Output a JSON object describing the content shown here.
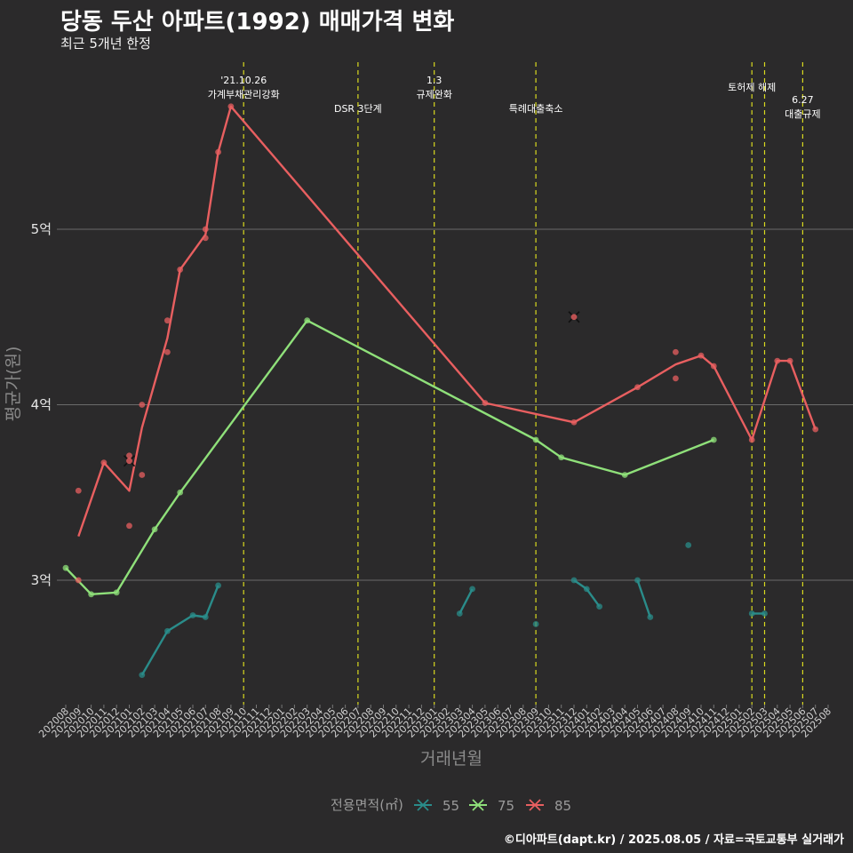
{
  "header": {
    "title": "당동 두산 아파트(1992) 매매가격 변화",
    "subtitle": "최근 5개년 한정"
  },
  "caption": "©디아파트(dapt.kr) / 2025.08.05 / 자료=국토교통부 실거래가",
  "colors": {
    "s55": "#2a8c8a",
    "s75": "#8fe07a",
    "s85": "#e85f60",
    "event": "#d9d91f",
    "grid": "#6b6b6b",
    "background": "#2b2a2b"
  },
  "chart_data": {
    "type": "line",
    "title": "당동 두산 아파트(1992) 매매가격 변화",
    "subtitle": "최근 5개년 한정",
    "xlabel": "거래년월",
    "ylabel": "평균가(원)",
    "legend_title": "전용면적(㎡)",
    "legend_position": "bottom",
    "grid": true,
    "ylim": [
      2.3,
      5.7
    ],
    "yticks": [
      {
        "value": 3,
        "label": "3억"
      },
      {
        "value": 4,
        "label": "4억"
      },
      {
        "value": 5,
        "label": "5억"
      }
    ],
    "categories": [
      "202008",
      "202009",
      "202010",
      "202011",
      "202012",
      "202101",
      "202102",
      "202103",
      "202104",
      "202105",
      "202106",
      "202107",
      "202108",
      "202109",
      "202110",
      "202111",
      "202112",
      "202201",
      "202202",
      "202203",
      "202204",
      "202205",
      "202206",
      "202207",
      "202208",
      "202209",
      "202210",
      "202211",
      "202212",
      "202301",
      "202302",
      "202303",
      "202304",
      "202305",
      "202306",
      "202307",
      "202308",
      "202309",
      "202310",
      "202311",
      "202312",
      "202401",
      "202402",
      "202403",
      "202404",
      "202405",
      "202406",
      "202407",
      "202408",
      "202409",
      "202410",
      "202411",
      "202412",
      "202501",
      "202502",
      "202503",
      "202504",
      "202505",
      "202506",
      "202507",
      "202508"
    ],
    "events": [
      {
        "month": "202110",
        "lines": [
          "'21.10.26",
          "가계부채관리강화"
        ]
      },
      {
        "month": "202207",
        "lines": [
          "DSR 3단계"
        ]
      },
      {
        "month": "202301",
        "lines": [
          "1.3",
          "규제완화"
        ]
      },
      {
        "month": "202309",
        "lines": [
          "특례대출축소"
        ]
      },
      {
        "month": "202502",
        "lines": [
          "토허제 해제"
        ]
      },
      {
        "month": "202503",
        "lines": []
      },
      {
        "month": "202506",
        "lines": [
          "6.27",
          "대출규제"
        ]
      }
    ],
    "series": [
      {
        "name": "55",
        "color": "#2a8c8a",
        "segments": [
          [
            [
              "202102",
              2.46
            ],
            [
              "202104",
              2.71
            ],
            [
              "202106",
              2.8
            ],
            [
              "202107",
              2.79
            ],
            [
              "202108",
              2.97
            ]
          ],
          [
            [
              "202303",
              2.81
            ],
            [
              "202304",
              2.95
            ]
          ],
          [
            [
              "202312",
              3.0
            ],
            [
              "202401",
              2.95
            ],
            [
              "202402",
              2.85
            ]
          ],
          [
            [
              "202405",
              3.0
            ],
            [
              "202406",
              2.79
            ]
          ],
          [
            [
              "202502",
              2.81
            ],
            [
              "202503",
              2.81
            ]
          ]
        ],
        "points": [
          [
            "202102",
            2.46
          ],
          [
            "202104",
            2.71
          ],
          [
            "202106",
            2.8
          ],
          [
            "202107",
            2.79
          ],
          [
            "202108",
            2.97
          ],
          [
            "202303",
            2.81
          ],
          [
            "202304",
            2.95
          ],
          [
            "202309",
            2.75
          ],
          [
            "202312",
            3.0
          ],
          [
            "202401",
            2.95
          ],
          [
            "202402",
            2.85
          ],
          [
            "202405",
            3.0
          ],
          [
            "202406",
            2.79
          ],
          [
            "202409",
            3.2
          ],
          [
            "202502",
            2.81
          ],
          [
            "202503",
            2.81
          ]
        ],
        "cancelled": []
      },
      {
        "name": "75",
        "color": "#8fe07a",
        "segments": [
          [
            [
              "202008",
              3.07
            ],
            [
              "202010",
              2.92
            ],
            [
              "202012",
              2.93
            ],
            [
              "202103",
              3.29
            ],
            [
              "202105",
              3.5
            ],
            [
              "202203",
              4.48
            ],
            [
              "202309",
              3.8
            ],
            [
              "202311",
              3.7
            ],
            [
              "202404",
              3.6
            ],
            [
              "202411",
              3.8
            ]
          ]
        ],
        "points": [
          [
            "202008",
            3.07
          ],
          [
            "202010",
            2.92
          ],
          [
            "202012",
            2.93
          ],
          [
            "202103",
            3.29
          ],
          [
            "202105",
            3.5
          ],
          [
            "202203",
            4.48
          ],
          [
            "202309",
            3.8
          ],
          [
            "202311",
            3.7
          ],
          [
            "202404",
            3.6
          ],
          [
            "202411",
            3.8
          ]
        ],
        "cancelled": []
      },
      {
        "name": "85",
        "color": "#e85f60",
        "segments": [
          [
            [
              "202009",
              3.25
            ],
            [
              "202011",
              3.67
            ],
            [
              "202101",
              3.51
            ],
            [
              "202102",
              3.87
            ],
            [
              "202104",
              4.38
            ],
            [
              "202105",
              4.77
            ],
            [
              "202107",
              4.97
            ],
            [
              "202108",
              5.44
            ],
            [
              "202109",
              5.7
            ],
            [
              "202305",
              4.01
            ],
            [
              "202312",
              3.9
            ],
            [
              "202405",
              4.1
            ],
            [
              "202408",
              4.23
            ],
            [
              "202410",
              4.28
            ],
            [
              "202411",
              4.22
            ],
            [
              "202502",
              3.8
            ],
            [
              "202504",
              4.25
            ],
            [
              "202505",
              4.25
            ],
            [
              "202507",
              3.86
            ]
          ]
        ],
        "points": [
          [
            "202009",
            3.51
          ],
          [
            "202009",
            3.0
          ],
          [
            "202011",
            3.67
          ],
          [
            "202101",
            3.71
          ],
          [
            "202101",
            3.31
          ],
          [
            "202102",
            4.0
          ],
          [
            "202102",
            3.6
          ],
          [
            "202104",
            4.48
          ],
          [
            "202104",
            4.3
          ],
          [
            "202105",
            4.77
          ],
          [
            "202107",
            5.0
          ],
          [
            "202107",
            4.95
          ],
          [
            "202108",
            5.44
          ],
          [
            "202109",
            5.7
          ],
          [
            "202305",
            4.01
          ],
          [
            "202312",
            3.9
          ],
          [
            "202405",
            4.1
          ],
          [
            "202408",
            4.3
          ],
          [
            "202408",
            4.15
          ],
          [
            "202410",
            4.28
          ],
          [
            "202411",
            4.22
          ],
          [
            "202502",
            3.8
          ],
          [
            "202504",
            4.25
          ],
          [
            "202505",
            4.25
          ],
          [
            "202507",
            3.86
          ]
        ],
        "cancelled": [
          [
            "202101",
            3.68
          ],
          [
            "202312",
            4.5
          ]
        ]
      }
    ]
  }
}
